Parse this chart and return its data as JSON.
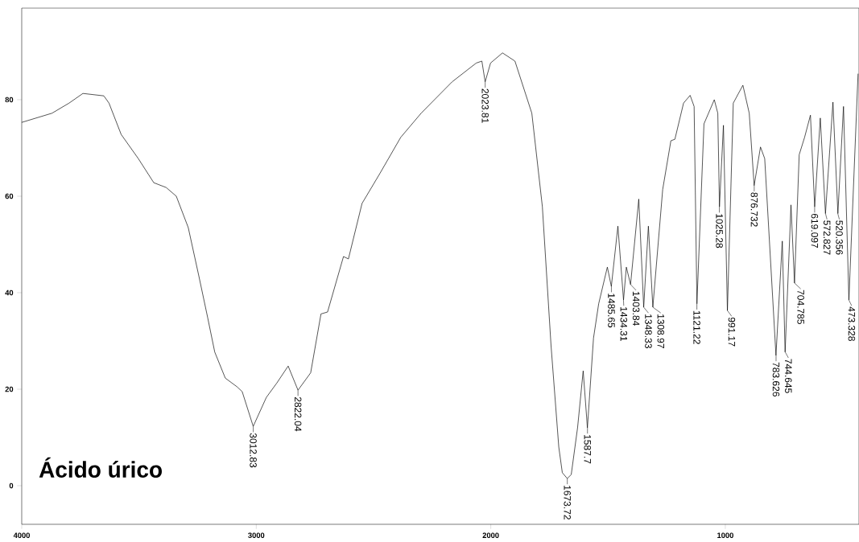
{
  "chart_data": {
    "type": "line",
    "title": "Ácido úrico",
    "color": "#000000",
    "x": [
      4000,
      3871,
      3798,
      3739,
      3650,
      3628,
      3576,
      3503,
      3437,
      3384,
      3341,
      3290,
      3245,
      3207,
      3177,
      3132,
      3082,
      3060,
      3013,
      2957,
      2912,
      2864,
      2822,
      2768,
      2724,
      2696,
      2628,
      2607,
      2549,
      2473,
      2384,
      2297,
      2165,
      2062,
      2038,
      2024,
      2001,
      1950,
      1897,
      1825,
      1780,
      1743,
      1710,
      1695,
      1674,
      1657,
      1630,
      1606,
      1588,
      1562,
      1540,
      1503,
      1486,
      1458,
      1434,
      1422,
      1404,
      1369,
      1348,
      1328,
      1309,
      1267,
      1232,
      1215,
      1178,
      1150,
      1133,
      1121,
      1091,
      1047,
      1032,
      1025,
      1008,
      991,
      966,
      925,
      898,
      877,
      850,
      832,
      784,
      757,
      745,
      720,
      705,
      685,
      662,
      637,
      619,
      595,
      573,
      541,
      520,
      496,
      473,
      434
    ],
    "values": [
      75.3,
      77.2,
      79.3,
      81.3,
      80.8,
      79.3,
      72.8,
      67.8,
      62.8,
      61.8,
      60,
      53.5,
      43.5,
      34.8,
      27.7,
      22.3,
      20.5,
      19.5,
      12.3,
      18.3,
      21.3,
      24.8,
      19.8,
      23.4,
      35.6,
      36,
      47.5,
      47,
      58.5,
      64.7,
      72.2,
      77.2,
      83.7,
      87.6,
      88,
      83.7,
      87.6,
      89.7,
      88,
      77.2,
      57.8,
      29,
      8,
      2.7,
      1.5,
      2.3,
      12,
      23.8,
      12,
      30.6,
      37.7,
      45.3,
      41.3,
      53.8,
      38.5,
      45.3,
      41.7,
      59.4,
      37,
      53.8,
      37,
      61.4,
      71.5,
      71.8,
      79.3,
      80.9,
      78.6,
      37.7,
      75,
      80,
      77.2,
      57.8,
      74.7,
      36.3,
      79.3,
      83,
      77.2,
      62.2,
      70.2,
      67.8,
      27,
      50.7,
      27.7,
      58.2,
      42,
      68.6,
      72.2,
      76.8,
      57.8,
      76.2,
      56.4,
      79.5,
      56.4,
      78.6,
      38.5,
      85.4
    ],
    "xlim": [
      4000,
      430
    ],
    "ylim": [
      -8,
      99
    ],
    "xticks": [
      4000,
      3000,
      2000,
      1000
    ],
    "yticks": [
      0,
      20,
      40,
      60,
      80
    ],
    "annotations": [
      {
        "text": "3012.83",
        "x": 3012.83,
        "y": 12.3
      },
      {
        "text": "2822.04",
        "x": 2822.04,
        "y": 19.8
      },
      {
        "text": "2023.81",
        "x": 2023.81,
        "y": 83.7
      },
      {
        "text": "1673.72",
        "x": 1673.72,
        "y": 1.5
      },
      {
        "text": "1587.7",
        "x": 1587.7,
        "y": 12
      },
      {
        "text": "1485.65",
        "x": 1485.65,
        "y": 41.3
      },
      {
        "text": "1434.31",
        "x": 1434.31,
        "y": 38.5
      },
      {
        "text": "1403.84",
        "x": 1403.84,
        "y": 41.7
      },
      {
        "text": "1348.33",
        "x": 1348.33,
        "y": 37
      },
      {
        "text": "1308.97",
        "x": 1308.97,
        "y": 37
      },
      {
        "text": "1121.22",
        "x": 1121.22,
        "y": 37.7
      },
      {
        "text": "1025.28",
        "x": 1025.28,
        "y": 57.8
      },
      {
        "text": "991.17",
        "x": 991.17,
        "y": 36.3
      },
      {
        "text": "876.732",
        "x": 876.732,
        "y": 62.2
      },
      {
        "text": "783.626",
        "x": 783.626,
        "y": 27
      },
      {
        "text": "744.645",
        "x": 744.645,
        "y": 27.7
      },
      {
        "text": "704.785",
        "x": 704.785,
        "y": 42
      },
      {
        "text": "619.097",
        "x": 619.097,
        "y": 57.8
      },
      {
        "text": "572.827",
        "x": 572.827,
        "y": 56.4
      },
      {
        "text": "520.356",
        "x": 520.356,
        "y": 56.4
      },
      {
        "text": "473.328",
        "x": 473.328,
        "y": 38.5
      }
    ]
  }
}
